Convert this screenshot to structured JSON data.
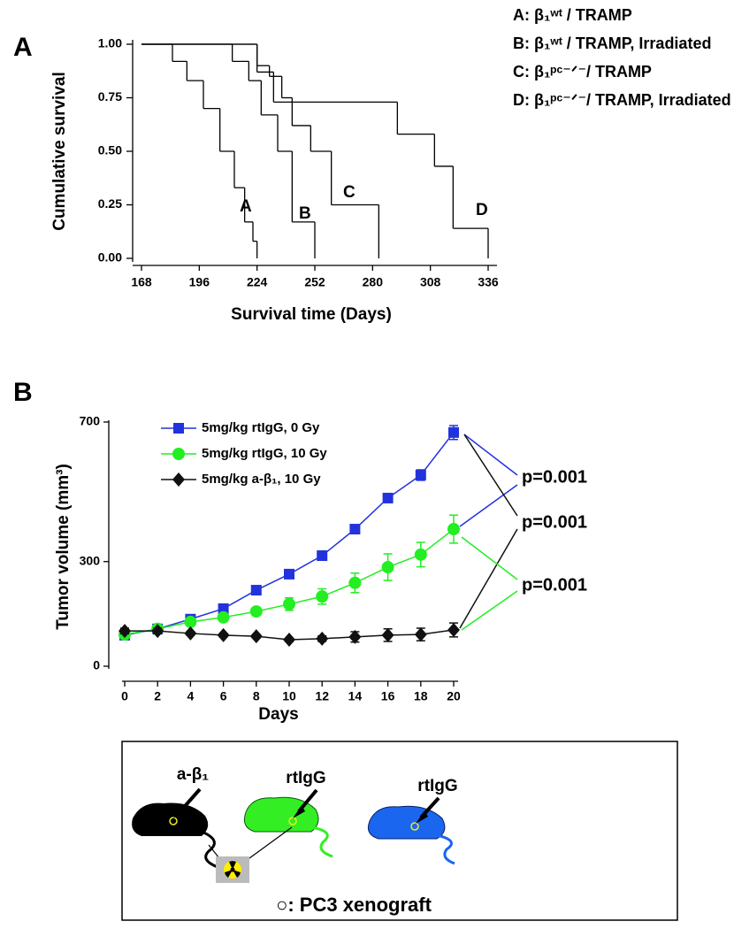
{
  "chart_data": [
    {
      "type": "step",
      "panel": "A",
      "xlabel": "Survival time (Days)",
      "ylabel": "Cumulative survival",
      "xlim": [
        168,
        336
      ],
      "xticks": [
        168,
        196,
        224,
        252,
        280,
        308,
        336
      ],
      "ylim": [
        0,
        1
      ],
      "yticks": [
        {
          "value": 0,
          "label": "0.00"
        },
        {
          "value": 0.25,
          "label": "0.25"
        },
        {
          "value": 0.5,
          "label": "0.50"
        },
        {
          "value": 0.75,
          "label": "0.75"
        },
        {
          "value": 1,
          "label": "1.00"
        }
      ],
      "series": [
        {
          "name": "A: β₁ʷᵗ / TRAMP",
          "label": "A",
          "color": "#000000",
          "x": [
            168,
            183,
            190,
            198,
            206,
            213,
            218,
            222,
            224
          ],
          "values": [
            1,
            0.92,
            0.83,
            0.7,
            0.5,
            0.33,
            0.17,
            0.08,
            0
          ]
        },
        {
          "name": "B: β₁ʷᵗ / TRAMP, Irradiated",
          "label": "B",
          "color": "#000000",
          "x": [
            168,
            212,
            220,
            226,
            234,
            241,
            252
          ],
          "values": [
            1,
            0.92,
            0.83,
            0.67,
            0.5,
            0.17,
            0
          ]
        },
        {
          "name": "C: β₁ᵖᶜ⁻ᐟ⁻/ TRAMP",
          "label": "C",
          "color": "#000000",
          "x": [
            168,
            224,
            230,
            236,
            241,
            250,
            260,
            283
          ],
          "values": [
            1,
            0.9,
            0.85,
            0.75,
            0.62,
            0.5,
            0.25,
            0
          ]
        },
        {
          "name": "D: β₁ᵖᶜ⁻ᐟ⁻/ TRAMP, Irradiated",
          "label": "D",
          "color": "#000000",
          "x": [
            168,
            224,
            232,
            292,
            310,
            319,
            336
          ],
          "values": [
            1,
            0.87,
            0.73,
            0.58,
            0.43,
            0.14,
            0
          ]
        }
      ]
    },
    {
      "type": "line",
      "panel": "B",
      "xlabel": "Days",
      "ylabel": "Tumor volume (mm³)",
      "xlim": [
        0,
        20
      ],
      "xticks": [
        0,
        2,
        4,
        6,
        8,
        10,
        12,
        14,
        16,
        18,
        20
      ],
      "ylim": [
        0,
        700
      ],
      "yticks": [
        0,
        300,
        700
      ],
      "x": [
        0,
        2,
        4,
        6,
        8,
        10,
        12,
        14,
        16,
        18,
        20
      ],
      "series": [
        {
          "name": "5mg/kg rtIgG, 0 Gy",
          "color": "#2233dd",
          "marker": "square",
          "values": [
            89,
            107,
            135,
            165,
            218,
            264,
            317,
            393,
            482,
            548,
            670
          ],
          "errors": [
            5,
            5,
            5,
            5,
            6,
            8,
            8,
            8,
            8,
            15,
            20
          ]
        },
        {
          "name": "5mg/kg rtIgG, 10 Gy",
          "color": "#22ee22",
          "marker": "circle",
          "values": [
            91,
            107,
            127,
            140,
            157,
            178,
            200,
            239,
            284,
            320,
            393
          ],
          "errors": [
            5,
            5,
            8,
            8,
            10,
            18,
            22,
            28,
            38,
            35,
            40
          ]
        },
        {
          "name": "5mg/kg a-β₁, 10 Gy",
          "color": "#111111",
          "marker": "diamond",
          "values": [
            101,
            101,
            94,
            89,
            86,
            76,
            79,
            84,
            89,
            91,
            104
          ],
          "errors": [
            8,
            8,
            5,
            5,
            5,
            5,
            8,
            15,
            18,
            18,
            20
          ]
        }
      ],
      "annotations": [
        "p=0.001",
        "p=0.001",
        "p=0.001"
      ]
    }
  ],
  "diagram": {
    "labels": [
      "a-β₁",
      "rtIgG",
      "rtIgG"
    ],
    "legend": "○: PC3 xenograft"
  }
}
